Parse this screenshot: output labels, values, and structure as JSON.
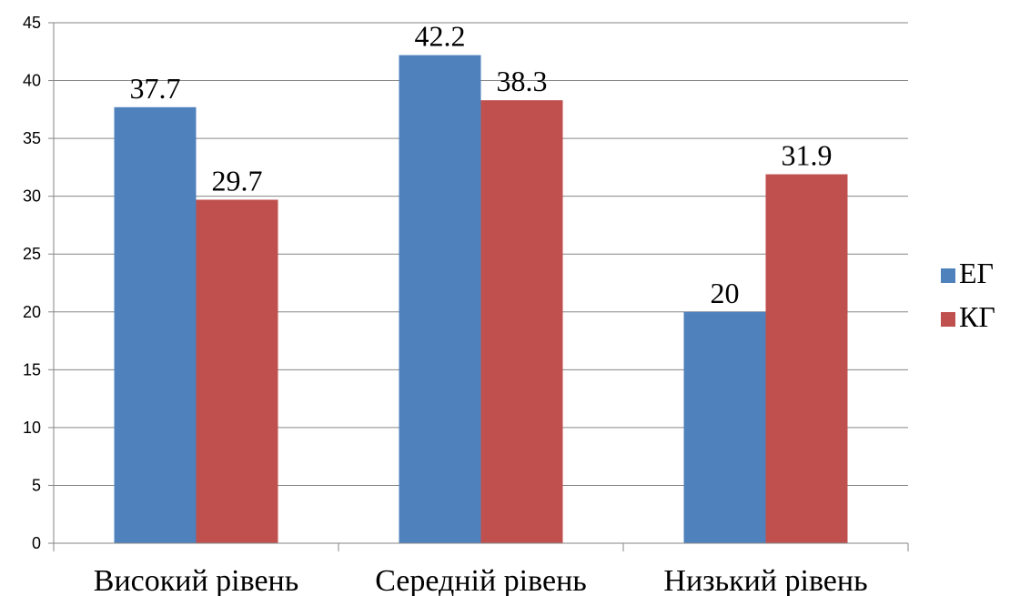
{
  "chart_data": {
    "type": "bar",
    "categories": [
      "Високий рівень",
      "Середній рівень",
      "Низький рівень"
    ],
    "series": [
      {
        "name": "ЕГ",
        "values": [
          37.7,
          42.2,
          20
        ],
        "color": "#4F81BD"
      },
      {
        "name": "КГ",
        "values": [
          29.7,
          38.3,
          31.9
        ],
        "color": "#C0504D"
      }
    ],
    "y_ticks": [
      "0",
      "5",
      "10",
      "15",
      "20",
      "25",
      "30",
      "35",
      "40",
      "45"
    ],
    "ylim": [
      0,
      45
    ],
    "grid": true,
    "legend_position": "right"
  }
}
